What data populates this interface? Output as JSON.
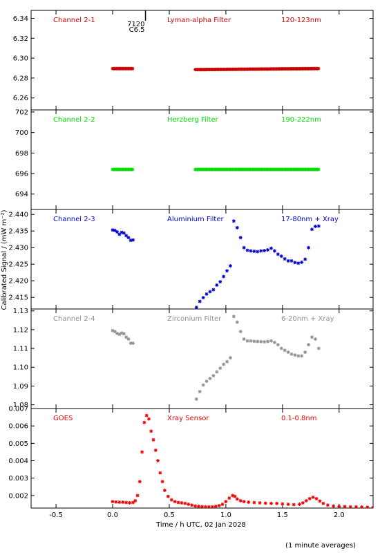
{
  "figure": {
    "xlabel": "Time / h UTC, 02 Jan 2028",
    "ylabel": "Calibrated Signal / (mW m⁻²)",
    "footnote": "(1 minute averages)",
    "xlim": [
      -0.72,
      2.3
    ],
    "xticks": [
      "-0.5",
      "0.0",
      "0.5",
      "1.0",
      "1.5",
      "2.0"
    ],
    "flare_marker": {
      "x": 0.29,
      "label_top": "7120",
      "label_bottom": "C6.5"
    }
  },
  "chart_data": [
    {
      "type": "scatter",
      "channel": "Channel 2-1",
      "filter": "Lyman-alpha Filter",
      "band": "120-123nm",
      "color": "#cc0000",
      "ylim": [
        6.248,
        6.348
      ],
      "yticks": [
        "6.26",
        "6.28",
        "6.30",
        "6.32",
        "6.34"
      ],
      "segments": [
        {
          "x": [
            0.0,
            0.18
          ],
          "y": [
            6.2895,
            6.2895
          ]
        },
        {
          "x": [
            0.73,
            1.82
          ],
          "y": [
            6.2885,
            6.2895
          ]
        }
      ]
    },
    {
      "type": "scatter",
      "channel": "Channel 2-2",
      "filter": "Herzberg Filter",
      "band": "190-222nm",
      "color": "#00dd00",
      "ylim": [
        692.5,
        702.2
      ],
      "yticks": [
        "694",
        "696",
        "698",
        "700",
        "702"
      ],
      "segments": [
        {
          "x": [
            0.0,
            0.18
          ],
          "y": [
            696.4,
            696.4
          ]
        },
        {
          "x": [
            0.73,
            1.82
          ],
          "y": [
            696.4,
            696.4
          ]
        }
      ]
    },
    {
      "type": "scatter",
      "channel": "Channel 2-3",
      "filter": "Aluminium Filter",
      "band": "17-80nm + Xray",
      "color": "#0000cc",
      "ylim": [
        2.4115,
        2.4415
      ],
      "yticks": [
        "2.415",
        "2.420",
        "2.425",
        "2.430",
        "2.435",
        "2.440"
      ],
      "x": [
        0.0,
        0.02,
        0.04,
        0.06,
        0.08,
        0.1,
        0.12,
        0.14,
        0.16,
        0.18,
        0.74,
        0.77,
        0.8,
        0.83,
        0.86,
        0.89,
        0.92,
        0.95,
        0.98,
        1.01,
        1.04,
        1.07,
        1.1,
        1.13,
        1.16,
        1.19,
        1.22,
        1.25,
        1.28,
        1.31,
        1.34,
        1.37,
        1.4,
        1.43,
        1.46,
        1.49,
        1.52,
        1.55,
        1.58,
        1.61,
        1.64,
        1.67,
        1.7,
        1.73,
        1.76,
        1.79,
        1.82
      ],
      "y": [
        2.4353,
        2.4352,
        2.4347,
        2.434,
        2.4346,
        2.4344,
        2.4336,
        2.433,
        2.4322,
        2.4323,
        2.412,
        2.4138,
        2.4149,
        2.416,
        2.4167,
        2.4173,
        2.4187,
        2.4197,
        2.4213,
        2.423,
        2.4245,
        2.438,
        2.436,
        2.433,
        2.43,
        2.4292,
        2.429,
        2.4289,
        2.4288,
        2.429,
        2.4291,
        2.4293,
        2.4298,
        2.429,
        2.428,
        2.4274,
        2.4266,
        2.426,
        2.426,
        2.4255,
        2.4253,
        2.4256,
        2.4265,
        2.43,
        2.4355,
        2.4364,
        2.4365
      ]
    },
    {
      "type": "scatter",
      "channel": "Channel 2-4",
      "filter": "Zirconium Filter",
      "band": "6-20nm + Xray",
      "color": "#909090",
      "ylim": [
        1.078,
        1.131
      ],
      "yticks": [
        "1.08",
        "1.09",
        "1.10",
        "1.11",
        "1.12",
        "1.13"
      ],
      "x": [
        0.0,
        0.02,
        0.04,
        0.06,
        0.08,
        0.1,
        0.12,
        0.14,
        0.16,
        0.18,
        0.74,
        0.77,
        0.8,
        0.83,
        0.86,
        0.89,
        0.92,
        0.95,
        0.98,
        1.01,
        1.04,
        1.07,
        1.1,
        1.13,
        1.16,
        1.19,
        1.22,
        1.25,
        1.28,
        1.31,
        1.34,
        1.37,
        1.4,
        1.43,
        1.46,
        1.49,
        1.52,
        1.55,
        1.58,
        1.61,
        1.64,
        1.67,
        1.7,
        1.73,
        1.76,
        1.79,
        1.82
      ],
      "y": [
        1.1195,
        1.119,
        1.118,
        1.1175,
        1.1182,
        1.1178,
        1.116,
        1.115,
        1.1128,
        1.1128,
        1.083,
        1.087,
        1.0905,
        1.0925,
        1.094,
        1.0955,
        1.0975,
        1.0995,
        1.1015,
        1.103,
        1.105,
        1.127,
        1.124,
        1.119,
        1.115,
        1.114,
        1.114,
        1.1138,
        1.1137,
        1.1136,
        1.1135,
        1.1137,
        1.114,
        1.1132,
        1.112,
        1.11,
        1.109,
        1.108,
        1.107,
        1.1065,
        1.106,
        1.106,
        1.108,
        1.112,
        1.116,
        1.115,
        1.11
      ]
    },
    {
      "type": "scatter",
      "channel": "GOES",
      "filter": "Xray Sensor",
      "band": "0.1-0.8nm",
      "color": "#ee0000",
      "ylim": [
        0.00128,
        0.007
      ],
      "yticks": [
        "0.002",
        "0.003",
        "0.004",
        "0.005",
        "0.006",
        "0.007"
      ],
      "x": [
        0.0,
        0.03,
        0.06,
        0.09,
        0.12,
        0.15,
        0.18,
        0.2,
        0.22,
        0.24,
        0.26,
        0.28,
        0.3,
        0.32,
        0.34,
        0.36,
        0.38,
        0.4,
        0.42,
        0.44,
        0.46,
        0.49,
        0.52,
        0.55,
        0.58,
        0.61,
        0.64,
        0.67,
        0.7,
        0.73,
        0.76,
        0.79,
        0.82,
        0.85,
        0.88,
        0.91,
        0.94,
        0.97,
        1.0,
        1.03,
        1.06,
        1.08,
        1.1,
        1.13,
        1.16,
        1.2,
        1.25,
        1.3,
        1.35,
        1.4,
        1.45,
        1.5,
        1.55,
        1.6,
        1.65,
        1.68,
        1.71,
        1.74,
        1.77,
        1.8,
        1.83,
        1.86,
        1.9,
        1.95,
        2.0,
        2.05,
        2.1,
        2.15,
        2.2,
        2.25,
        2.3
      ],
      "y": [
        0.00165,
        0.00163,
        0.00162,
        0.00162,
        0.0016,
        0.00158,
        0.0016,
        0.0017,
        0.002,
        0.0028,
        0.0045,
        0.0062,
        0.0066,
        0.0064,
        0.0057,
        0.0052,
        0.0046,
        0.004,
        0.0033,
        0.0028,
        0.0023,
        0.00195,
        0.00175,
        0.00165,
        0.0016,
        0.00158,
        0.00155,
        0.0015,
        0.00145,
        0.0014,
        0.00138,
        0.00136,
        0.00135,
        0.00135,
        0.00135,
        0.00138,
        0.00142,
        0.0015,
        0.00165,
        0.00185,
        0.002,
        0.00195,
        0.0018,
        0.0017,
        0.00165,
        0.00162,
        0.0016,
        0.00158,
        0.00156,
        0.00155,
        0.00155,
        0.00152,
        0.0015,
        0.00148,
        0.0015,
        0.00158,
        0.0017,
        0.00182,
        0.0019,
        0.00182,
        0.00168,
        0.00155,
        0.00145,
        0.0014,
        0.00138,
        0.00137,
        0.00135,
        0.00135,
        0.00134,
        0.00133,
        0.00132
      ]
    }
  ]
}
